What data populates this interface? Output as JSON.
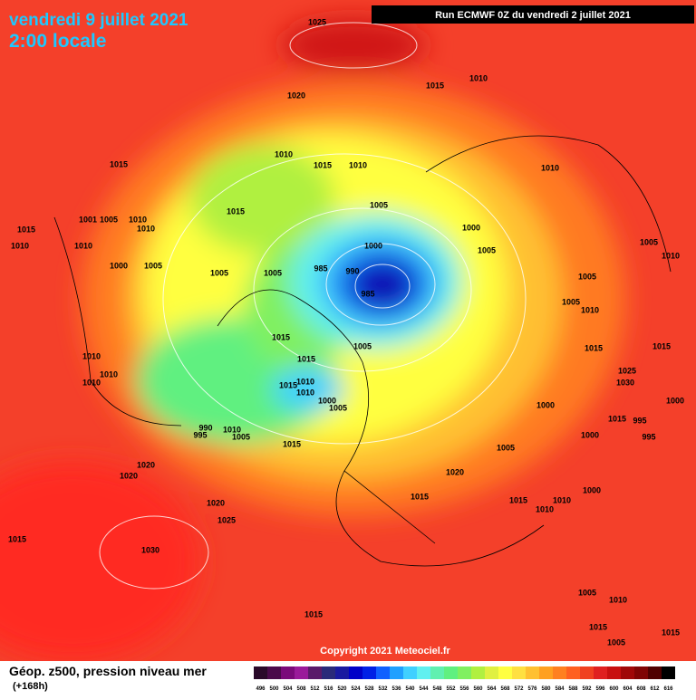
{
  "header": {
    "date": "vendredi 9 juillet 2021",
    "time": "2:00 locale",
    "run": "Run ECMWF 0Z du vendredi 2 juillet 2021"
  },
  "map": {
    "isobar_labels": [
      "1025",
      "1015",
      "1010",
      "1020",
      "1010",
      "1015",
      "1010",
      "1015",
      "1015",
      "1005",
      "1000",
      "1005",
      "1010",
      "1000",
      "990",
      "985",
      "985",
      "1005",
      "1005",
      "1005",
      "1000",
      "1010",
      "1010",
      "1015",
      "1001",
      "1005",
      "1010",
      "1010",
      "1005",
      "1005",
      "1010",
      "1010",
      "1005",
      "1015",
      "1005",
      "1015",
      "1015",
      "1010",
      "1010",
      "1000",
      "1005",
      "1010",
      "1010",
      "1010",
      "990",
      "995",
      "1010",
      "1005",
      "1015",
      "1000",
      "1000",
      "1015",
      "995",
      "995",
      "1000",
      "1005",
      "1020",
      "1020",
      "1020",
      "1020",
      "1025",
      "1015",
      "1015",
      "1010",
      "1010",
      "1000",
      "1015",
      "1030",
      "1015",
      "1005",
      "1010",
      "1015",
      "1015",
      "1005",
      "1030",
      "1025",
      "1015",
      "1015"
    ]
  },
  "copyright": "Copyright 2021 Meteociel.fr",
  "legend": {
    "title": "Géop. z500, pression niveau mer",
    "subtitle": "(+168h)",
    "scale": [
      496,
      500,
      504,
      508,
      512,
      516,
      520,
      524,
      528,
      532,
      536,
      540,
      544,
      548,
      552,
      556,
      560,
      564,
      568,
      572,
      576,
      580,
      584,
      588,
      592,
      596,
      600,
      604,
      608,
      612,
      616
    ],
    "colors": [
      "#2a0a2a",
      "#4b0a4b",
      "#7a0a7a",
      "#9a1a9a",
      "#5a1a6a",
      "#2a2a7a",
      "#1a1aa0",
      "#0000c8",
      "#0020e6",
      "#1060ff",
      "#20a0ff",
      "#40d0ff",
      "#60f0f0",
      "#60f0b0",
      "#60f080",
      "#80f060",
      "#b0f040",
      "#e0f040",
      "#ffff40",
      "#ffe040",
      "#ffc030",
      "#ffa020",
      "#ff8020",
      "#ff6020",
      "#f04020",
      "#e02020",
      "#c81010",
      "#a00808",
      "#800404",
      "#500000",
      "#000000"
    ]
  }
}
